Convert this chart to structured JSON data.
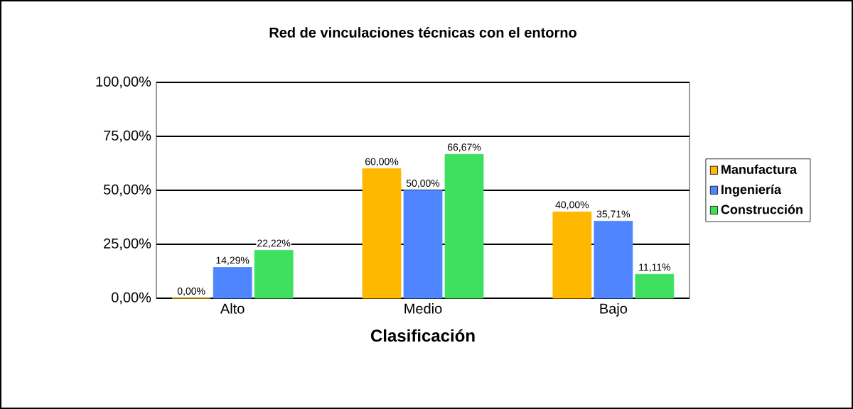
{
  "chart_data": {
    "type": "bar",
    "title": "Red de vinculaciones técnicas con el entorno",
    "xlabel": "Clasificación",
    "categories": [
      "Alto",
      "Medio",
      "Bajo"
    ],
    "series": [
      {
        "name": "Manufactura",
        "color": "#ffb800",
        "values": [
          0,
          60,
          40
        ],
        "value_labels": [
          "0,00%",
          "60,00%",
          "40,00%"
        ]
      },
      {
        "name": "Ingeniería",
        "color": "#4f86ff",
        "values": [
          14.29,
          50,
          35.71
        ],
        "value_labels": [
          "14,29%",
          "50,00%",
          "35,71%"
        ]
      },
      {
        "name": "Construcción",
        "color": "#3fe060",
        "values": [
          22.22,
          66.67,
          11.11
        ],
        "value_labels": [
          "22,22%",
          "66,67%",
          "11,11%"
        ]
      }
    ],
    "ylim": [
      0,
      100
    ],
    "yticks": [
      {
        "value": 0,
        "label": "0,00%"
      },
      {
        "value": 25,
        "label": "25,00%"
      },
      {
        "value": 50,
        "label": "50,00%"
      },
      {
        "value": 75,
        "label": "75,00%"
      },
      {
        "value": 100,
        "label": "100,00%"
      }
    ],
    "grid": "y",
    "legend": "right"
  }
}
